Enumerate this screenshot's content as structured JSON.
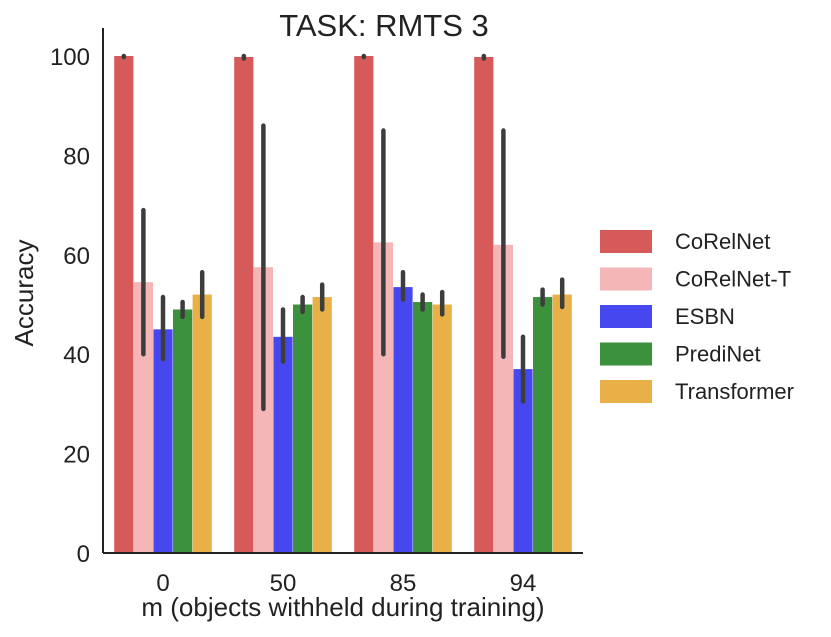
{
  "chart_data": {
    "type": "bar",
    "title": "TASK: RMTS 3",
    "xlabel": "m (objects withheld during training)",
    "ylabel": "Accuracy",
    "categories": [
      "0",
      "50",
      "85",
      "94"
    ],
    "ylim": [
      0,
      105
    ],
    "yticks": [
      0,
      20,
      40,
      60,
      80,
      100
    ],
    "grid": false,
    "legend_position": "right",
    "series": [
      {
        "name": "CoRelNet",
        "color": "#d65a5a",
        "values": [
          100,
          99.8,
          100,
          99.8
        ],
        "err_low": [
          99.8,
          99.5,
          99.8,
          99.5
        ],
        "err_high": [
          100,
          100,
          100,
          100
        ]
      },
      {
        "name": "CoRelNet-T",
        "color": "#f4b6b6",
        "values": [
          54.5,
          57.5,
          62.5,
          62
        ],
        "err_low": [
          40,
          29,
          40,
          39.5
        ],
        "err_high": [
          69,
          86,
          85,
          85
        ]
      },
      {
        "name": "ESBN",
        "color": "#4747f0",
        "values": [
          45,
          43.5,
          53.5,
          37
        ],
        "err_low": [
          39,
          38.5,
          51,
          30.5
        ],
        "err_high": [
          51.5,
          49,
          56.5,
          43.5
        ]
      },
      {
        "name": "PrediNet",
        "color": "#3c913c",
        "values": [
          49,
          50,
          50.5,
          51.5
        ],
        "err_low": [
          47.5,
          48.5,
          49,
          50
        ],
        "err_high": [
          50.5,
          51.5,
          52,
          53
        ]
      },
      {
        "name": "Transformer",
        "color": "#e8b047",
        "values": [
          52,
          51.5,
          50,
          52
        ],
        "err_low": [
          47.5,
          49,
          48,
          49.5
        ],
        "err_high": [
          56.5,
          54,
          52.5,
          55
        ]
      }
    ]
  }
}
